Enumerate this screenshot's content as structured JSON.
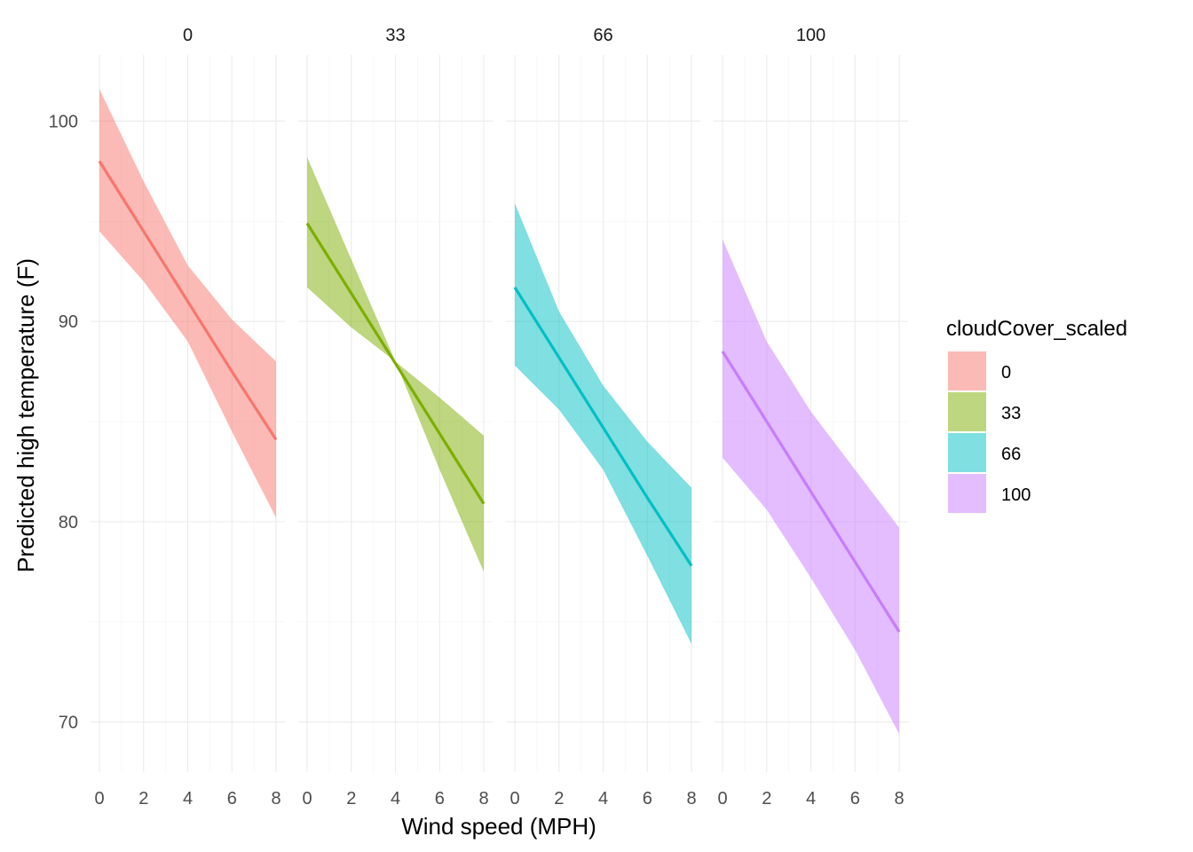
{
  "chart_data": {
    "type": "line",
    "xlabel": "Wind speed (MPH)",
    "ylabel": "Predicted high temperature (F)",
    "xlim": [
      0,
      8
    ],
    "ylim": [
      67.5,
      103.3
    ],
    "x_ticks": [
      0,
      2,
      4,
      6,
      8
    ],
    "y_ticks": [
      70,
      80,
      90,
      100
    ],
    "grid": true,
    "legend": {
      "title": "cloudCover_scaled",
      "placement": "right",
      "entries": [
        "0",
        "33",
        "66",
        "100"
      ]
    },
    "facets": [
      {
        "label": "0",
        "color": "#F8766D",
        "x": [
          0,
          2,
          4,
          6,
          8
        ],
        "fit": [
          98.0,
          94.5,
          91.0,
          87.5,
          84.1
        ],
        "lower": [
          94.5,
          92.0,
          89.0,
          84.5,
          80.2
        ],
        "upper": [
          101.6,
          97.0,
          92.8,
          90.1,
          88.0
        ]
      },
      {
        "label": "33",
        "color": "#7CAE00",
        "x": [
          0,
          2,
          4,
          6,
          8
        ],
        "fit": [
          94.9,
          91.4,
          87.9,
          84.4,
          80.9
        ],
        "lower": [
          91.7,
          89.7,
          88.0,
          82.6,
          77.5
        ],
        "upper": [
          98.2,
          93.1,
          88.0,
          86.2,
          84.3
        ]
      },
      {
        "label": "66",
        "color": "#00BFC4",
        "x": [
          0,
          2,
          4,
          6,
          8
        ],
        "fit": [
          91.7,
          88.2,
          84.7,
          81.2,
          77.8
        ],
        "lower": [
          87.8,
          85.6,
          82.6,
          78.3,
          73.9
        ],
        "upper": [
          95.9,
          90.5,
          86.8,
          84.0,
          81.7
        ]
      },
      {
        "label": "100",
        "color": "#C77CFF",
        "x": [
          0,
          2,
          4,
          6,
          8
        ],
        "fit": [
          88.5,
          85.0,
          81.5,
          78.0,
          74.5
        ],
        "lower": [
          83.2,
          80.6,
          77.2,
          73.6,
          69.4
        ],
        "upper": [
          94.1,
          89.0,
          85.5,
          82.6,
          79.7
        ]
      }
    ]
  }
}
